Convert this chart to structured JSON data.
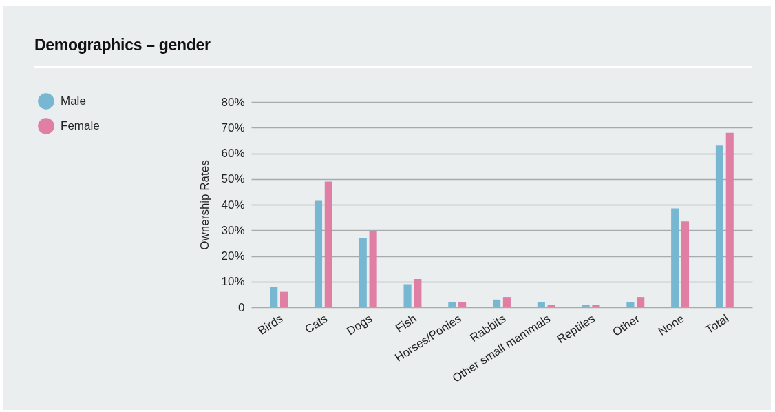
{
  "chart_data": {
    "type": "bar",
    "title": "Demographics – gender",
    "ylabel": "Ownership Rates",
    "categories": [
      "Birds",
      "Cats",
      "Dogs",
      "Fish",
      "Horses/Ponies",
      "Rabbits",
      "Other small mammals",
      "Reptiles",
      "Other",
      "None",
      "Total"
    ],
    "series": [
      {
        "name": "Male",
        "color": "#78b7d2",
        "values": [
          8,
          41.5,
          27,
          9,
          2,
          3,
          2,
          1,
          2,
          38.5,
          63
        ]
      },
      {
        "name": "Female",
        "color": "#e07ea3",
        "values": [
          6,
          49,
          29.5,
          11,
          2,
          4,
          1,
          1,
          4,
          33.5,
          68
        ]
      }
    ],
    "ylim": [
      0,
      80
    ],
    "yticks": [
      0,
      {
        "value": 10,
        "label": "10%"
      },
      {
        "value": 20,
        "label": "20%"
      },
      {
        "value": 30,
        "label": "30%"
      },
      {
        "value": 40,
        "label": "40%"
      },
      {
        "value": 50,
        "label": "50%"
      },
      {
        "value": 60,
        "label": "60%"
      },
      {
        "value": 70,
        "label": "70%"
      },
      {
        "value": 80,
        "label": "80%"
      }
    ],
    "grid": "y",
    "legend": "top left"
  }
}
